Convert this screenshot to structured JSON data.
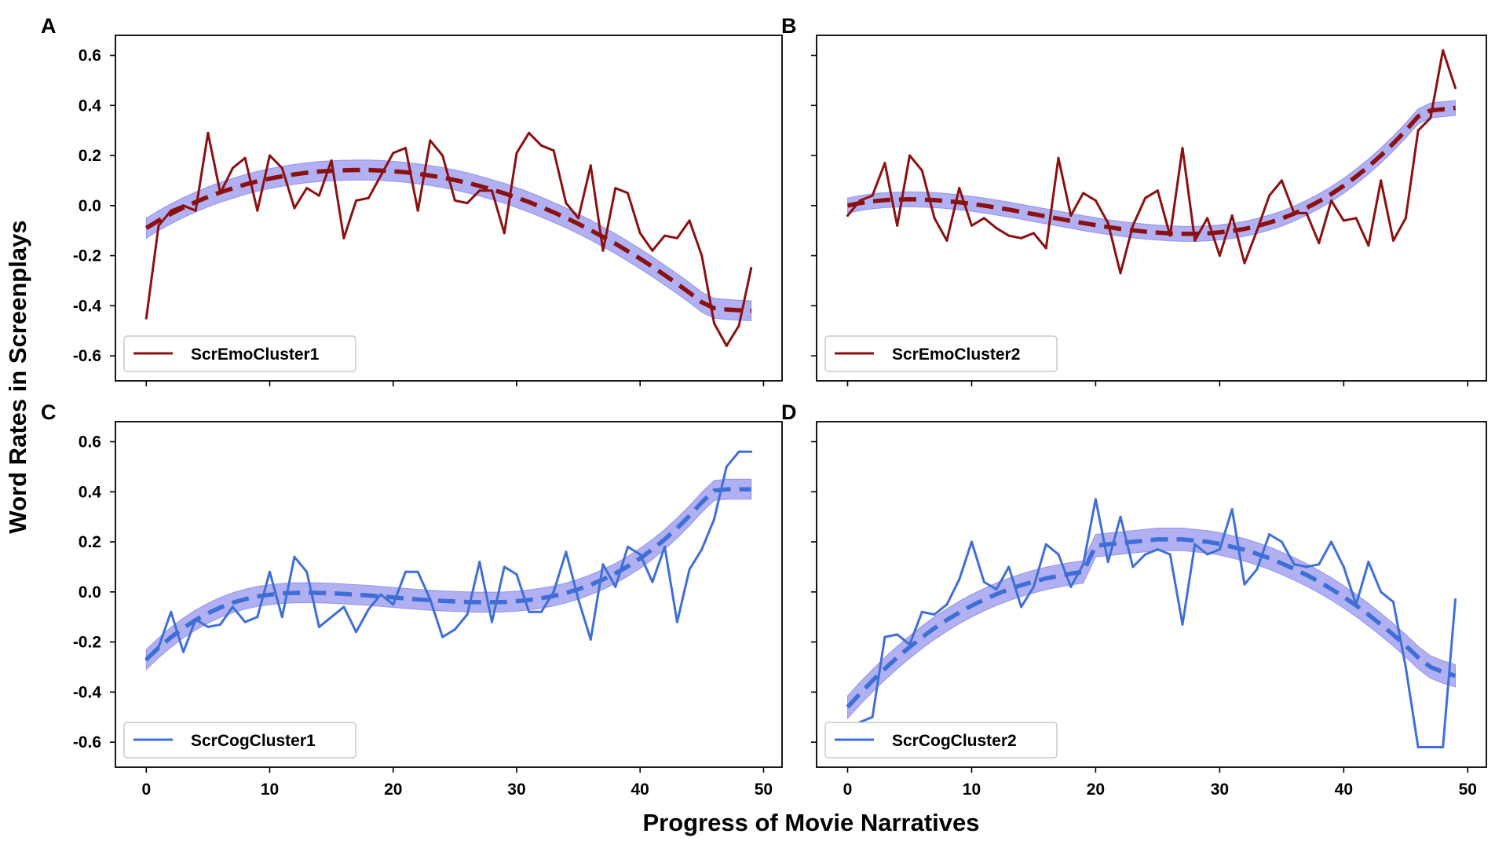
{
  "chart_data": {
    "type": "line",
    "xlabel": "Progress of Movie Narratives",
    "ylabel": "Word Rates in Screenplays",
    "xlim": [
      -2.5,
      51.5
    ],
    "ylim": [
      -0.7,
      0.68
    ],
    "x_ticks": [
      0,
      10,
      20,
      30,
      40,
      50
    ],
    "y_ticks": [
      -0.6,
      -0.4,
      -0.2,
      0.0,
      0.2,
      0.4,
      0.6
    ],
    "x_tick_labels": [
      "0",
      "10",
      "20",
      "30",
      "40",
      "50"
    ],
    "y_tick_labels": [
      "-0.6",
      "-0.4",
      "-0.2",
      "0.0",
      "0.2",
      "0.4",
      "0.6"
    ],
    "panels": [
      {
        "letter": "A",
        "legend": "ScrEmoCluster1",
        "color": "#8b1010",
        "fit_color": "#8b1010",
        "band_color": "#7b7bea",
        "raw": [
          -0.45,
          -0.08,
          -0.02,
          0.0,
          -0.02,
          0.29,
          0.05,
          0.15,
          0.19,
          -0.02,
          0.2,
          0.15,
          -0.01,
          0.07,
          0.04,
          0.18,
          -0.13,
          0.02,
          0.03,
          0.12,
          0.21,
          0.23,
          -0.02,
          0.26,
          0.2,
          0.02,
          0.01,
          0.06,
          0.06,
          -0.11,
          0.21,
          0.29,
          0.24,
          0.22,
          0.01,
          -0.05,
          0.16,
          -0.18,
          0.07,
          0.05,
          -0.11,
          -0.18,
          -0.12,
          -0.13,
          -0.06,
          -0.2,
          -0.47,
          -0.56,
          -0.48,
          -0.25
        ],
        "fit": [
          -0.09,
          -0.06,
          -0.033,
          -0.008,
          0.014,
          0.035,
          0.053,
          0.069,
          0.084,
          0.097,
          0.108,
          0.117,
          0.125,
          0.131,
          0.136,
          0.139,
          0.141,
          0.142,
          0.142,
          0.14,
          0.137,
          0.133,
          0.127,
          0.12,
          0.112,
          0.102,
          0.091,
          0.078,
          0.064,
          0.049,
          0.032,
          0.014,
          -0.006,
          -0.027,
          -0.049,
          -0.073,
          -0.098,
          -0.125,
          -0.152,
          -0.182,
          -0.212,
          -0.244,
          -0.278,
          -0.312,
          -0.348,
          -0.386,
          -0.41,
          -0.415,
          -0.418,
          -0.42
        ],
        "band_half_width": 0.04
      },
      {
        "letter": "B",
        "legend": "ScrEmoCluster2",
        "color": "#8b1010",
        "fit_color": "#8b1010",
        "band_color": "#7b7bea",
        "raw": [
          -0.04,
          0.02,
          0.04,
          0.17,
          -0.08,
          0.2,
          0.14,
          -0.05,
          -0.14,
          0.07,
          -0.08,
          -0.05,
          -0.09,
          -0.12,
          -0.13,
          -0.11,
          -0.17,
          0.19,
          -0.04,
          0.05,
          0.02,
          -0.07,
          -0.27,
          -0.08,
          0.03,
          0.06,
          -0.12,
          0.23,
          -0.14,
          -0.05,
          -0.2,
          -0.04,
          -0.23,
          -0.1,
          0.04,
          0.1,
          -0.03,
          -0.03,
          -0.15,
          0.02,
          -0.06,
          -0.05,
          -0.16,
          0.1,
          -0.14,
          -0.05,
          0.3,
          0.35,
          0.62,
          0.47
        ],
        "fit": [
          0.0,
          0.01,
          0.017,
          0.022,
          0.024,
          0.025,
          0.024,
          0.022,
          0.018,
          0.013,
          0.007,
          0.0,
          -0.008,
          -0.016,
          -0.025,
          -0.034,
          -0.043,
          -0.052,
          -0.061,
          -0.07,
          -0.078,
          -0.086,
          -0.093,
          -0.099,
          -0.104,
          -0.108,
          -0.111,
          -0.113,
          -0.113,
          -0.111,
          -0.107,
          -0.101,
          -0.093,
          -0.082,
          -0.068,
          -0.052,
          -0.032,
          -0.009,
          0.017,
          0.046,
          0.079,
          0.116,
          0.156,
          0.2,
          0.248,
          0.3,
          0.356,
          0.38,
          0.385,
          0.39
        ],
        "band_half_width": 0.03
      },
      {
        "letter": "C",
        "legend": "ScrCogCluster1",
        "color": "#3f6fd6",
        "fit_color": "#3f6fd6",
        "band_color": "#7b7bea",
        "raw": [
          -0.27,
          -0.22,
          -0.08,
          -0.24,
          -0.11,
          -0.14,
          -0.13,
          -0.06,
          -0.12,
          -0.1,
          0.08,
          -0.1,
          0.14,
          0.08,
          -0.14,
          -0.1,
          -0.06,
          -0.16,
          -0.07,
          -0.01,
          -0.05,
          0.08,
          0.08,
          -0.03,
          -0.18,
          -0.15,
          -0.09,
          0.12,
          -0.12,
          0.1,
          0.07,
          -0.08,
          -0.08,
          0.0,
          0.16,
          -0.03,
          -0.19,
          0.11,
          0.02,
          0.18,
          0.15,
          0.04,
          0.18,
          -0.12,
          0.09,
          0.17,
          0.29,
          0.5,
          0.56,
          0.56
        ],
        "fit": [
          -0.27,
          -0.223,
          -0.181,
          -0.144,
          -0.112,
          -0.085,
          -0.062,
          -0.043,
          -0.029,
          -0.018,
          -0.011,
          -0.006,
          -0.004,
          -0.003,
          -0.004,
          -0.005,
          -0.008,
          -0.011,
          -0.014,
          -0.018,
          -0.022,
          -0.026,
          -0.03,
          -0.033,
          -0.036,
          -0.038,
          -0.04,
          -0.041,
          -0.041,
          -0.04,
          -0.037,
          -0.032,
          -0.025,
          -0.016,
          -0.004,
          0.011,
          0.029,
          0.05,
          0.074,
          0.102,
          0.134,
          0.17,
          0.21,
          0.255,
          0.304,
          0.358,
          0.405,
          0.41,
          0.41,
          0.41
        ],
        "band_half_width": 0.04
      },
      {
        "letter": "D",
        "legend": "ScrCogCluster2",
        "color": "#3f6fd6",
        "fit_color": "#3f6fd6",
        "band_color": "#7b7bea",
        "raw": [
          -0.6,
          -0.52,
          -0.5,
          -0.18,
          -0.17,
          -0.21,
          -0.08,
          -0.09,
          -0.05,
          0.05,
          0.2,
          0.04,
          0.01,
          0.1,
          -0.06,
          0.02,
          0.19,
          0.15,
          0.02,
          0.11,
          0.37,
          0.12,
          0.3,
          0.1,
          0.15,
          0.17,
          0.15,
          -0.13,
          0.19,
          0.15,
          0.17,
          0.33,
          0.03,
          0.09,
          0.23,
          0.2,
          0.11,
          0.1,
          0.11,
          0.2,
          0.1,
          -0.05,
          0.12,
          0.0,
          -0.04,
          -0.3,
          -0.62,
          -0.62,
          -0.62,
          -0.03
        ],
        "fit": [
          -0.46,
          -0.406,
          -0.355,
          -0.307,
          -0.262,
          -0.22,
          -0.181,
          -0.145,
          -0.112,
          -0.082,
          -0.055,
          -0.031,
          -0.009,
          0.01,
          0.027,
          0.041,
          0.054,
          0.064,
          0.073,
          0.08,
          0.185,
          0.19,
          0.195,
          0.2,
          0.205,
          0.21,
          0.21,
          0.21,
          0.205,
          0.2,
          0.192,
          0.18,
          0.168,
          0.152,
          0.135,
          0.114,
          0.092,
          0.068,
          0.041,
          0.012,
          -0.02,
          -0.054,
          -0.091,
          -0.13,
          -0.171,
          -0.215,
          -0.262,
          -0.3,
          -0.32,
          -0.335
        ],
        "band_half_width": 0.045
      }
    ]
  }
}
